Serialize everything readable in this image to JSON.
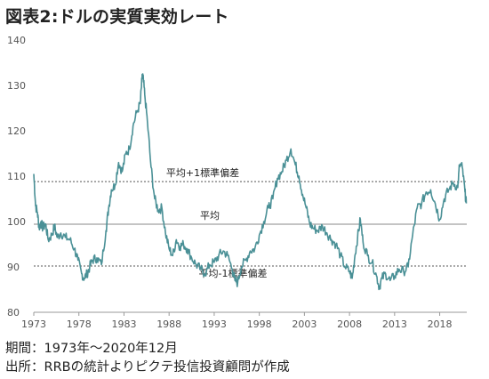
{
  "title": "図表2:ドルの実質実効レート",
  "footer": {
    "period": "期間：1973年～2020年12月",
    "source": "出所：RRBの統計よりピクテ投信投資顧問が作成"
  },
  "chart_data": {
    "type": "line",
    "title": "図表2:ドルの実質実効レート",
    "xlabel": "",
    "ylabel": "",
    "xlim": [
      1973.0,
      2021.0
    ],
    "ylim": [
      80,
      140
    ],
    "yticks": [
      80,
      90,
      100,
      110,
      120,
      130,
      140
    ],
    "xticks": [
      1973,
      1978,
      1983,
      1988,
      1993,
      1998,
      2003,
      2008,
      2013,
      2018
    ],
    "xtick_labels": [
      "1973",
      "1978",
      "1983",
      "1988",
      "1993",
      "1998",
      "2003",
      "2008",
      "2013",
      "2018"
    ],
    "grid": false,
    "legend": "none",
    "line_color": "#4a9096",
    "series": [
      {
        "x": [
          1973.0,
          1973.2,
          1973.4,
          1973.6,
          1973.8,
          1974.0,
          1974.3,
          1974.6,
          1975.0,
          1975.3,
          1975.6,
          1976.0,
          1976.5,
          1977.0,
          1977.5,
          1977.9,
          1978.3,
          1978.6,
          1978.9,
          1979.2,
          1979.5,
          1980.0,
          1980.5,
          1981.0,
          1981.3,
          1981.6,
          1982.0,
          1982.4,
          1982.8,
          1983.2,
          1983.6,
          1984.0,
          1984.4,
          1984.8,
          1985.0,
          1985.1,
          1985.3,
          1985.6,
          1986.0,
          1986.4,
          1986.8,
          1987.2,
          1987.6,
          1988.0,
          1988.4,
          1988.8,
          1989.2,
          1989.6,
          1990.0,
          1990.5,
          1991.0,
          1991.5,
          1992.0,
          1992.5,
          1993.0,
          1993.5,
          1994.0,
          1994.5,
          1995.0,
          1995.3,
          1995.6,
          1996.0,
          1996.5,
          1997.0,
          1997.5,
          1998.0,
          1998.5,
          1999.0,
          1999.5,
          2000.0,
          2000.5,
          2001.0,
          2001.5,
          2002.0,
          2002.4,
          2002.8,
          2003.2,
          2003.6,
          2004.0,
          2004.5,
          2005.0,
          2005.5,
          2006.0,
          2006.5,
          2007.0,
          2007.5,
          2008.0,
          2008.3,
          2008.6,
          2008.9,
          2009.2,
          2009.5,
          2010.0,
          2010.5,
          2011.0,
          2011.3,
          2011.6,
          2012.0,
          2012.5,
          2013.0,
          2013.5,
          2014.0,
          2014.5,
          2015.0,
          2015.5,
          2016.0,
          2016.5,
          2017.0,
          2017.5,
          2018.0,
          2018.5,
          2019.0,
          2019.5,
          2020.0,
          2020.2,
          2020.5,
          2020.8,
          2020.95
        ],
        "values": [
          110.5,
          103.5,
          102.0,
          98.5,
          100.0,
          98.5,
          99.5,
          96.0,
          97.0,
          99.0,
          96.5,
          97.5,
          96.5,
          96.0,
          94.0,
          91.5,
          88.5,
          87.5,
          88.5,
          90.0,
          91.5,
          92.0,
          90.5,
          98.0,
          103.0,
          107.0,
          108.0,
          113.0,
          111.0,
          115.0,
          116.0,
          121.0,
          124.0,
          126.0,
          131.5,
          132.0,
          128.0,
          122.0,
          112.0,
          105.0,
          102.5,
          103.0,
          97.5,
          94.0,
          92.5,
          96.0,
          94.5,
          95.0,
          94.0,
          92.0,
          90.5,
          89.5,
          88.5,
          90.5,
          91.0,
          92.5,
          93.5,
          92.5,
          89.5,
          87.0,
          86.5,
          90.0,
          91.5,
          93.5,
          94.0,
          97.0,
          100.0,
          103.0,
          105.0,
          109.5,
          111.0,
          113.5,
          116.0,
          112.5,
          110.0,
          106.0,
          103.0,
          99.5,
          98.5,
          98.0,
          99.0,
          97.5,
          96.0,
          95.0,
          92.5,
          90.0,
          89.0,
          87.5,
          92.5,
          96.5,
          100.5,
          95.5,
          92.5,
          91.0,
          88.0,
          85.5,
          87.5,
          88.5,
          87.0,
          88.0,
          89.5,
          89.0,
          90.0,
          97.0,
          103.0,
          104.0,
          106.5,
          107.0,
          104.0,
          100.5,
          105.0,
          107.0,
          108.5,
          107.5,
          112.5,
          112.0,
          106.5,
          104.0
        ]
      }
    ],
    "reference_lines": [
      {
        "label": "平均+1標準偏差",
        "value": 108.8,
        "style": "dashed"
      },
      {
        "label": "平均",
        "value": 99.4,
        "style": "solid"
      },
      {
        "label": "平均-1標準偏差",
        "value": 90.2,
        "style": "dashed"
      }
    ]
  }
}
